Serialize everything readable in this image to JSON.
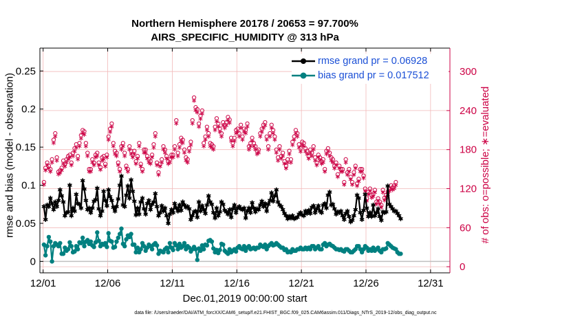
{
  "title": "Northern Hemisphere 20178 / 20653 = 97.700%",
  "subtitle": "AIRS_SPECIFIC_HUMIDITY @ 313 hPa",
  "ylabel_left": "rmse and bias (model - observation)",
  "ylabel_right": "# of obs: o=possible; ∗=evaluated",
  "xlabel": "Dec.01,2019 00:00:00 start",
  "footer": "data file: /Users/raeder/DAI/ATM_forcXX/CAM6_setup/f.e21.FHIST_BGC.f09_025.CAM6assim.011/Diags_NTrS_2019-12/obs_diag_output.nc",
  "legend": {
    "rmse": "rmse grand pr = 0.06928",
    "bias": "bias grand pr = 0.017512"
  },
  "colors": {
    "rmse": "#000000",
    "bias": "#008080",
    "obs": "#cc0044",
    "legend_text": "#1a4fd6",
    "grid": "#f2b8b8",
    "zero_line": "#bfbfbf"
  },
  "chart_data": {
    "type": "line",
    "x_unit": "days since Dec.01,2019 00:00:00 (6-hourly)",
    "xlim": [
      -0.25,
      31.5
    ],
    "xticks": [
      0,
      5,
      10,
      15,
      20,
      25,
      30
    ],
    "xtick_labels": [
      "12/01",
      "12/06",
      "12/11",
      "12/16",
      "12/21",
      "12/26",
      "12/31"
    ],
    "y_left": {
      "lim": [
        -0.015,
        0.28
      ],
      "ticks": [
        0,
        0.05,
        0.1,
        0.15,
        0.2,
        0.25
      ],
      "tick_labels": [
        "0",
        "0.05",
        "0.1",
        "0.15",
        "0.2",
        "0.25"
      ]
    },
    "y_right": {
      "lim": [
        -9.4,
        336
      ],
      "ticks": [
        0,
        60,
        120,
        180,
        240,
        300
      ],
      "tick_labels": [
        "0",
        "60",
        "120",
        "180",
        "240",
        "300"
      ]
    },
    "grid": true,
    "legend_position": "top-right",
    "series": [
      {
        "name": "rmse grand pr = 0.06928",
        "axis": "left",
        "marker": "asterisk",
        "values": [
          0.072,
          0.055,
          0.074,
          0.072,
          0.083,
          0.076,
          0.068,
          0.078,
          0.072,
          0.08,
          0.094,
          0.086,
          0.078,
          0.06,
          0.064,
          0.065,
          0.1,
          0.06,
          0.07,
          0.066,
          0.088,
          0.076,
          0.075,
          0.07,
          0.106,
          0.095,
          0.08,
          0.068,
          0.07,
          0.064,
          0.07,
          0.079,
          0.081,
          0.096,
          0.069,
          0.06,
          0.066,
          0.092,
          0.08,
          0.073,
          0.094,
          0.085,
          0.08,
          0.071,
          0.066,
          0.072,
          0.082,
          0.1,
          0.112,
          0.074,
          0.072,
          0.087,
          0.099,
          0.083,
          0.107,
          0.092,
          0.079,
          0.061,
          0.07,
          0.062,
          0.078,
          0.083,
          0.069,
          0.062,
          0.076,
          0.08,
          0.068,
          0.075,
          0.078,
          0.089,
          0.072,
          0.06,
          0.064,
          0.073,
          0.066,
          0.07,
          0.06,
          0.05,
          0.062,
          0.068,
          0.064,
          0.076,
          0.07,
          0.066,
          0.074,
          0.067,
          0.078,
          0.074,
          0.071,
          0.072,
          0.069,
          0.055,
          0.06,
          0.065,
          0.066,
          0.058,
          0.078,
          0.066,
          0.073,
          0.068,
          0.063,
          0.074,
          0.086,
          0.078,
          0.075,
          0.064,
          0.057,
          0.07,
          0.06,
          0.065,
          0.078,
          0.075,
          0.067,
          0.065,
          0.062,
          0.068,
          0.058,
          0.069,
          0.074,
          0.064,
          0.07,
          0.072,
          0.069,
          0.068,
          0.07,
          0.057,
          0.066,
          0.07,
          0.064,
          0.077,
          0.07,
          0.065,
          0.069,
          0.068,
          0.074,
          0.079,
          0.072,
          0.076,
          0.066,
          0.075,
          0.08,
          0.09,
          0.079,
          0.086,
          0.094,
          0.078,
          0.074,
          0.072,
          0.068,
          0.063,
          0.06,
          0.056,
          0.059,
          0.057,
          0.06,
          0.056,
          0.057,
          0.058,
          0.062,
          0.064,
          0.061,
          0.06,
          0.066,
          0.063,
          0.067,
          0.063,
          0.071,
          0.073,
          0.064,
          0.069,
          0.073,
          0.066,
          0.064,
          0.074,
          0.076,
          0.07,
          0.087,
          0.091,
          0.074,
          0.075,
          0.069,
          0.062,
          0.065,
          0.064,
          0.066,
          0.06,
          0.055,
          0.063,
          0.066,
          0.059,
          0.052,
          0.054,
          0.06,
          0.068,
          0.087,
          0.083,
          0.064,
          0.055,
          0.067,
          0.088,
          0.07,
          0.059,
          0.064,
          0.059,
          0.074,
          0.06,
          0.064,
          0.069,
          0.059,
          0.054,
          0.065,
          0.064,
          0.065,
          0.099,
          0.075,
          0.072,
          0.069,
          0.066,
          0.066,
          0.063,
          0.06,
          0.056
        ]
      },
      {
        "name": "bias grand pr = 0.017512",
        "axis": "left",
        "marker": "filled-circle",
        "values": [
          0.022,
          0.008,
          0.02,
          0.032,
          0.026,
          0.0,
          0.02,
          0.024,
          0.022,
          0.02,
          0.024,
          0.01,
          0.01,
          0.018,
          0.014,
          0.016,
          0.025,
          0.02,
          0.012,
          0.013,
          0.02,
          0.016,
          0.025,
          0.024,
          0.031,
          0.02,
          0.026,
          0.028,
          0.023,
          0.026,
          0.021,
          0.019,
          0.025,
          0.038,
          0.027,
          0.02,
          0.023,
          0.022,
          0.024,
          0.019,
          0.037,
          0.027,
          0.026,
          0.018,
          0.019,
          0.026,
          0.031,
          0.036,
          0.043,
          0.023,
          0.02,
          0.029,
          0.034,
          0.032,
          0.036,
          0.022,
          0.022,
          0.012,
          0.018,
          0.012,
          0.016,
          0.024,
          0.02,
          0.014,
          0.018,
          0.022,
          0.02,
          0.016,
          0.022,
          0.024,
          0.021,
          0.01,
          0.014,
          0.013,
          0.012,
          0.016,
          0.018,
          0.012,
          0.024,
          0.018,
          0.015,
          0.024,
          0.021,
          0.016,
          0.023,
          0.018,
          0.02,
          0.024,
          0.016,
          0.02,
          0.018,
          0.013,
          0.016,
          0.019,
          0.016,
          0.002,
          0.017,
          0.014,
          0.021,
          0.016,
          0.022,
          0.021,
          0.027,
          0.028,
          0.026,
          0.017,
          0.012,
          0.015,
          0.011,
          0.015,
          0.023,
          0.022,
          0.014,
          0.012,
          0.01,
          0.016,
          0.012,
          0.014,
          0.016,
          0.013,
          0.018,
          0.02,
          0.017,
          0.016,
          0.02,
          0.014,
          0.018,
          0.02,
          0.016,
          0.017,
          0.018,
          0.016,
          0.018,
          0.018,
          0.022,
          0.02,
          0.019,
          0.022,
          0.016,
          0.02,
          0.022,
          0.024,
          0.021,
          0.022,
          0.024,
          0.022,
          0.02,
          0.018,
          0.018,
          0.015,
          0.016,
          0.012,
          0.013,
          0.012,
          0.016,
          0.014,
          0.014,
          0.016,
          0.016,
          0.018,
          0.016,
          0.016,
          0.018,
          0.016,
          0.018,
          0.016,
          0.02,
          0.02,
          0.016,
          0.018,
          0.02,
          0.016,
          0.016,
          0.022,
          0.024,
          0.02,
          0.022,
          0.023,
          0.021,
          0.02,
          0.018,
          0.016,
          0.016,
          0.015,
          0.016,
          0.014,
          0.013,
          0.016,
          0.016,
          0.014,
          0.012,
          0.012,
          0.014,
          0.016,
          0.02,
          0.02,
          0.016,
          0.012,
          0.016,
          0.02,
          0.018,
          0.014,
          0.016,
          0.014,
          0.018,
          0.014,
          0.016,
          0.018,
          0.014,
          0.012,
          0.016,
          0.016,
          0.017,
          0.024,
          0.022,
          0.02,
          0.018,
          0.017,
          0.016,
          0.012,
          0.01,
          0.01
        ]
      },
      {
        "name": "# of obs possible",
        "axis": "right",
        "marker": "open-circle",
        "values": [
          130,
          152,
          160,
          155,
          150,
          165,
          195,
          205,
          168,
          146,
          148,
          152,
          163,
          158,
          165,
          170,
          172,
          160,
          175,
          182,
          188,
          170,
          190,
          202,
          210,
          208,
          190,
          175,
          150,
          150,
          165,
          160,
          172,
          175,
          160,
          153,
          168,
          170,
          158,
          172,
          200,
          212,
          220,
          190,
          178,
          175,
          160,
          150,
          185,
          190,
          175,
          155,
          150,
          185,
          178,
          172,
          178,
          162,
          170,
          190,
          158,
          150,
          180,
          180,
          170,
          165,
          162,
          172,
          188,
          205,
          160,
          145,
          158,
          165,
          185,
          180,
          170,
          162,
          165,
          172,
          172,
          185,
          225,
          175,
          188,
          198,
          195,
          180,
          168,
          165,
          182,
          192,
          225,
          260,
          245,
          242,
          220,
          232,
          240,
          190,
          200,
          215,
          205,
          190,
          188,
          185,
          215,
          228,
          220,
          212,
          205,
          222,
          218,
          222,
          230,
          226,
          198,
          190,
          198,
          210,
          212,
          205,
          218,
          200,
          212,
          210,
          220,
          185,
          190,
          198,
          190,
          185,
          178,
          180,
          205,
          212,
          218,
          222,
          200,
          185,
          205,
          218,
          210,
          200,
          180,
          168,
          185,
          170,
          175,
          162,
          155,
          165,
          178,
          165,
          192,
          200,
          210,
          205,
          188,
          182,
          192,
          190,
          182,
          178,
          170,
          180,
          175,
          185,
          168,
          160,
          172,
          168,
          162,
          165,
          150,
          178,
          182,
          175,
          168,
          165,
          155,
          160,
          142,
          155,
          150,
          150,
          130,
          165,
          145,
          150,
          138,
          130,
          145,
          155,
          128,
          135,
          150,
          150,
          140,
          120,
          105,
          115,
          120,
          110,
          112,
          118,
          100,
          105,
          100,
          95,
          118,
          106,
          110,
          115,
          120,
          125,
          122,
          125,
          130
        ]
      },
      {
        "name": "# of obs evaluated",
        "axis": "right",
        "marker": "asterisk",
        "values": [
          126,
          148,
          156,
          151,
          146,
          160,
          190,
          200,
          163,
          142,
          144,
          148,
          158,
          154,
          160,
          165,
          168,
          156,
          170,
          177,
          183,
          165,
          185,
          197,
          205,
          203,
          185,
          170,
          146,
          146,
          160,
          156,
          168,
          170,
          156,
          149,
          163,
          165,
          154,
          168,
          195,
          207,
          215,
          185,
          173,
          170,
          156,
          146,
          180,
          185,
          170,
          151,
          146,
          180,
          173,
          168,
          173,
          158,
          166,
          185,
          154,
          146,
          175,
          175,
          166,
          160,
          158,
          168,
          183,
          200,
          156,
          141,
          154,
          160,
          180,
          175,
          166,
          158,
          160,
          168,
          168,
          180,
          220,
          170,
          183,
          193,
          190,
          175,
          163,
          160,
          177,
          187,
          220,
          255,
          240,
          237,
          215,
          227,
          235,
          185,
          195,
          210,
          200,
          185,
          183,
          180,
          210,
          223,
          215,
          207,
          200,
          217,
          213,
          217,
          225,
          221,
          193,
          185,
          193,
          205,
          207,
          200,
          213,
          195,
          207,
          205,
          215,
          180,
          185,
          193,
          185,
          180,
          173,
          175,
          200,
          207,
          213,
          217,
          195,
          180,
          200,
          213,
          205,
          195,
          175,
          163,
          180,
          166,
          170,
          158,
          151,
          160,
          173,
          160,
          187,
          195,
          205,
          200,
          183,
          177,
          187,
          185,
          177,
          173,
          166,
          175,
          170,
          180,
          163,
          156,
          168,
          163,
          158,
          160,
          146,
          173,
          177,
          170,
          163,
          160,
          151,
          156,
          138,
          151,
          146,
          146,
          126,
          160,
          141,
          146,
          134,
          126,
          141,
          151,
          124,
          131,
          146,
          146,
          136,
          116,
          101,
          111,
          116,
          106,
          108,
          114,
          96,
          101,
          96,
          91,
          114,
          102,
          106,
          111,
          116,
          120,
          118,
          120,
          125
        ]
      }
    ]
  }
}
